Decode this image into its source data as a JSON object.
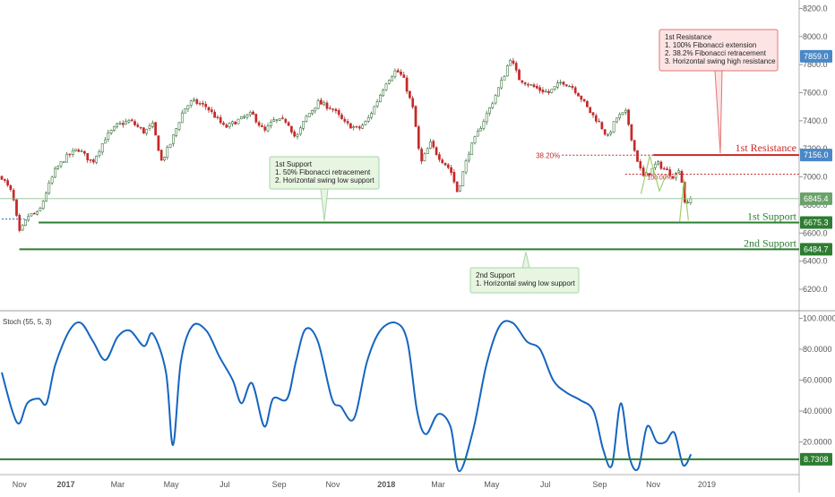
{
  "chart_data": [
    {
      "type": "candlestick",
      "title": "",
      "y_axis": {
        "side": "right",
        "ticks": [
          "8200.0",
          "8000.0",
          "7800.0",
          "7600.0",
          "7400.0",
          "7200.0",
          "7000.0",
          "6800.0",
          "6600.0",
          "6400.0",
          "6200.0"
        ],
        "range": [
          6060,
          8260
        ]
      },
      "x_axis": {
        "ticks": [
          "Nov",
          "2017",
          "Mar",
          "May",
          "Jul",
          "Sep",
          "Nov",
          "2018",
          "Mar",
          "May",
          "Jul",
          "Sep",
          "Nov",
          "2019"
        ]
      },
      "price_path": [
        [
          "2016-10-20",
          7000
        ],
        [
          "2016-11-01",
          6880
        ],
        [
          "2016-11-09",
          6600
        ],
        [
          "2016-11-20",
          6730
        ],
        [
          "2016-12-01",
          6740
        ],
        [
          "2016-12-10",
          6900
        ],
        [
          "2016-12-20",
          7050
        ],
        [
          "2017-01-01",
          7140
        ],
        [
          "2017-01-15",
          7200
        ],
        [
          "2017-01-31",
          7100
        ],
        [
          "2017-02-15",
          7280
        ],
        [
          "2017-03-01",
          7370
        ],
        [
          "2017-03-15",
          7400
        ],
        [
          "2017-03-31",
          7320
        ],
        [
          "2017-04-10",
          7370
        ],
        [
          "2017-04-20",
          7110
        ],
        [
          "2017-05-01",
          7250
        ],
        [
          "2017-05-15",
          7480
        ],
        [
          "2017-05-25",
          7540
        ],
        [
          "2017-06-10",
          7500
        ],
        [
          "2017-06-20",
          7430
        ],
        [
          "2017-07-01",
          7350
        ],
        [
          "2017-07-15",
          7400
        ],
        [
          "2017-08-01",
          7450
        ],
        [
          "2017-08-15",
          7320
        ],
        [
          "2017-08-25",
          7400
        ],
        [
          "2017-09-10",
          7400
        ],
        [
          "2017-09-20",
          7270
        ],
        [
          "2017-10-01",
          7420
        ],
        [
          "2017-10-15",
          7530
        ],
        [
          "2017-10-31",
          7490
        ],
        [
          "2017-11-15",
          7380
        ],
        [
          "2017-11-30",
          7340
        ],
        [
          "2017-12-10",
          7400
        ],
        [
          "2017-12-20",
          7520
        ],
        [
          "2018-01-01",
          7680
        ],
        [
          "2018-01-12",
          7760
        ],
        [
          "2018-01-20",
          7710
        ],
        [
          "2018-02-01",
          7470
        ],
        [
          "2018-02-09",
          7090
        ],
        [
          "2018-02-20",
          7240
        ],
        [
          "2018-03-01",
          7150
        ],
        [
          "2018-03-15",
          7050
        ],
        [
          "2018-03-23",
          6890
        ],
        [
          "2018-04-05",
          7180
        ],
        [
          "2018-04-20",
          7380
        ],
        [
          "2018-05-01",
          7520
        ],
        [
          "2018-05-15",
          7720
        ],
        [
          "2018-05-22",
          7850
        ],
        [
          "2018-06-01",
          7700
        ],
        [
          "2018-06-15",
          7650
        ],
        [
          "2018-06-25",
          7620
        ],
        [
          "2018-07-05",
          7600
        ],
        [
          "2018-07-20",
          7680
        ],
        [
          "2018-08-01",
          7640
        ],
        [
          "2018-08-10",
          7570
        ],
        [
          "2018-08-20",
          7470
        ],
        [
          "2018-09-01",
          7380
        ],
        [
          "2018-09-10",
          7280
        ],
        [
          "2018-09-20",
          7420
        ],
        [
          "2018-10-01",
          7460
        ],
        [
          "2018-10-10",
          7200
        ],
        [
          "2018-10-20",
          7000
        ],
        [
          "2018-10-28",
          7030
        ],
        [
          "2018-11-05",
          7100
        ],
        [
          "2018-11-15",
          7050
        ],
        [
          "2018-11-25",
          7000
        ],
        [
          "2018-12-01",
          7070
        ],
        [
          "2018-12-08",
          6780
        ],
        [
          "2018-12-14",
          6845
        ]
      ],
      "levels": [
        {
          "name": "1st Resistance",
          "value": 7156.0,
          "label": "7156.0",
          "color": "#c62828"
        },
        {
          "name": "1st Support",
          "value": 6675.3,
          "label": "6675.3",
          "color": "#2e7d32"
        },
        {
          "name": "2nd Support",
          "value": 6484.7,
          "label": "6484.7",
          "color": "#2e7d32"
        }
      ],
      "price_badges": [
        {
          "value": 7859.0,
          "label": "7859.0",
          "color": "#4a88c7"
        },
        {
          "value": 6845.4,
          "label": "6845.4",
          "color": "#6aa26a"
        }
      ],
      "fib_labels": [
        "38.20%",
        "100.00%"
      ],
      "annotations": [
        {
          "id": "resistance-note",
          "lines": [
            "1st Resistance",
            "1. 100% Fibonacci extension",
            "2. 38.2% Fibonacci retracement",
            "3. Horizontal swing high resistance"
          ]
        },
        {
          "id": "support1-note",
          "lines": [
            "1st Support",
            "1. 50% Fibonacci retracement",
            "2. Horizontal swing low support"
          ]
        },
        {
          "id": "support2-note",
          "lines": [
            "2nd Support",
            "1. Horizontal swing low support"
          ]
        }
      ]
    },
    {
      "type": "line",
      "title": "Stoch (55, 5, 3)",
      "y_axis": {
        "side": "right",
        "ticks": [
          "100.0000",
          "80.0000",
          "60.0000",
          "40.0000",
          "20.0000"
        ],
        "range": [
          0,
          102
        ]
      },
      "level": {
        "value": 8.7308,
        "label": "8.7308",
        "color": "#2e7d32"
      },
      "series": [
        {
          "color": "#1565c0",
          "values": [
            [
              "2016-10-20",
              65
            ],
            [
              "2016-11-01",
              40
            ],
            [
              "2016-11-09",
              32
            ],
            [
              "2016-11-18",
              45
            ],
            [
              "2016-12-01",
              48
            ],
            [
              "2016-12-10",
              45
            ],
            [
              "2016-12-20",
              70
            ],
            [
              "2017-01-05",
              92
            ],
            [
              "2017-01-18",
              97
            ],
            [
              "2017-02-01",
              85
            ],
            [
              "2017-02-15",
              73
            ],
            [
              "2017-03-01",
              88
            ],
            [
              "2017-03-15",
              92
            ],
            [
              "2017-03-31",
              82
            ],
            [
              "2017-04-10",
              90
            ],
            [
              "2017-04-25",
              65
            ],
            [
              "2017-05-03",
              18
            ],
            [
              "2017-05-12",
              72
            ],
            [
              "2017-05-25",
              95
            ],
            [
              "2017-06-10",
              92
            ],
            [
              "2017-06-25",
              75
            ],
            [
              "2017-07-10",
              60
            ],
            [
              "2017-07-20",
              45
            ],
            [
              "2017-08-01",
              58
            ],
            [
              "2017-08-15",
              30
            ],
            [
              "2017-08-25",
              48
            ],
            [
              "2017-09-10",
              48
            ],
            [
              "2017-09-20",
              72
            ],
            [
              "2017-10-01",
              93
            ],
            [
              "2017-10-15",
              85
            ],
            [
              "2017-10-31",
              48
            ],
            [
              "2017-11-10",
              43
            ],
            [
              "2017-11-25",
              35
            ],
            [
              "2017-12-10",
              72
            ],
            [
              "2017-12-25",
              92
            ],
            [
              "2018-01-12",
              97
            ],
            [
              "2018-01-25",
              85
            ],
            [
              "2018-02-05",
              40
            ],
            [
              "2018-02-15",
              25
            ],
            [
              "2018-03-01",
              38
            ],
            [
              "2018-03-15",
              30
            ],
            [
              "2018-03-25",
              1
            ],
            [
              "2018-04-10",
              28
            ],
            [
              "2018-04-25",
              70
            ],
            [
              "2018-05-10",
              95
            ],
            [
              "2018-05-25",
              97
            ],
            [
              "2018-06-10",
              85
            ],
            [
              "2018-06-25",
              80
            ],
            [
              "2018-07-10",
              60
            ],
            [
              "2018-07-25",
              52
            ],
            [
              "2018-08-10",
              47
            ],
            [
              "2018-08-25",
              40
            ],
            [
              "2018-09-05",
              15
            ],
            [
              "2018-09-15",
              5
            ],
            [
              "2018-09-25",
              45
            ],
            [
              "2018-10-05",
              10
            ],
            [
              "2018-10-15",
              3
            ],
            [
              "2018-10-25",
              30
            ],
            [
              "2018-11-05",
              20
            ],
            [
              "2018-11-15",
              20
            ],
            [
              "2018-11-25",
              26
            ],
            [
              "2018-12-05",
              5
            ],
            [
              "2018-12-14",
              12
            ]
          ]
        }
      ]
    }
  ]
}
